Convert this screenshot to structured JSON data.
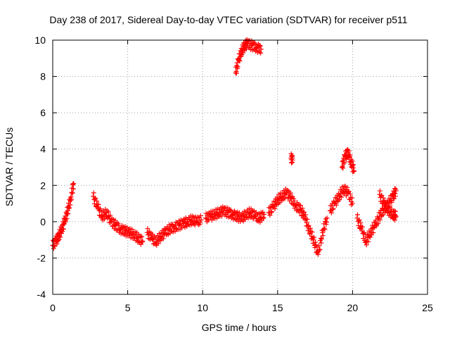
{
  "chart_data": {
    "type": "scatter",
    "title": "Day 238 of 2017, Sidereal Day-to-day VTEC variation (SDTVAR) for receiver p511",
    "xlabel": "GPS time / hours",
    "ylabel": "SDTVAR / TECUs",
    "xlim": [
      0,
      25
    ],
    "ylim": [
      -4,
      10
    ],
    "grid": true,
    "marker": "+",
    "series_color": "#ff0000",
    "xticks": [
      0,
      5,
      10,
      15,
      20,
      25
    ],
    "yticks": [
      -4,
      -2,
      0,
      2,
      4,
      6,
      8,
      10
    ],
    "series": [
      {
        "name": "p511",
        "segments": [
          {
            "x": [
              0.0,
              0.2,
              0.4,
              0.6,
              0.8,
              1.0,
              1.2,
              1.4
            ],
            "y": [
              -1.3,
              -1.1,
              -0.8,
              -0.4,
              0.0,
              0.6,
              1.3,
              2.1
            ]
          },
          {
            "x": [
              2.7,
              3.0,
              3.3,
              3.6,
              3.9,
              4.2,
              4.5,
              4.8,
              5.1,
              5.4,
              5.7,
              6.0
            ],
            "y": [
              1.4,
              0.8,
              0.3,
              0.5,
              0.0,
              -0.2,
              -0.4,
              -0.5,
              -0.6,
              -0.7,
              -0.9,
              -1.1
            ]
          },
          {
            "x": [
              6.3,
              6.6,
              6.9,
              7.2,
              7.5,
              7.8,
              8.1,
              8.4,
              8.7,
              9.0,
              9.3,
              9.6,
              9.9
            ],
            "y": [
              -0.6,
              -0.9,
              -1.1,
              -0.8,
              -0.6,
              -0.4,
              -0.3,
              -0.2,
              -0.1,
              0.0,
              0.1,
              0.0,
              0.1
            ]
          },
          {
            "x": [
              10.2,
              10.5,
              10.8,
              11.1,
              11.4,
              11.7,
              12.0,
              12.3,
              12.6,
              12.9,
              13.2,
              13.5,
              13.8,
              14.1
            ],
            "y": [
              0.2,
              0.3,
              0.4,
              0.5,
              0.6,
              0.5,
              0.4,
              0.3,
              0.2,
              0.4,
              0.5,
              0.3,
              0.2,
              0.4
            ]
          },
          {
            "x": [
              12.2,
              12.4,
              12.6,
              12.8,
              13.0,
              13.3,
              13.6,
              13.9
            ],
            "y": [
              8.2,
              8.9,
              9.4,
              9.7,
              9.8,
              9.7,
              9.6,
              9.5
            ]
          },
          {
            "x": [
              14.4,
              14.7,
              15.0,
              15.3,
              15.6,
              15.9,
              16.2,
              16.5,
              16.8,
              17.1,
              17.4,
              17.7,
              18.0,
              18.3
            ],
            "y": [
              0.5,
              0.8,
              1.2,
              1.4,
              1.6,
              1.3,
              0.9,
              0.7,
              0.3,
              -0.4,
              -1.0,
              -1.8,
              -0.6,
              0.2
            ]
          },
          {
            "x": [
              15.9,
              16.0
            ],
            "y": [
              3.5,
              3.4
            ]
          },
          {
            "x": [
              18.5,
              18.8,
              19.1,
              19.4,
              19.7,
              20.0
            ],
            "y": [
              0.6,
              1.0,
              1.4,
              1.8,
              1.6,
              1.0
            ]
          },
          {
            "x": [
              19.3,
              19.5,
              19.7,
              19.9,
              20.1
            ],
            "y": [
              3.0,
              3.6,
              3.8,
              3.3,
              2.8
            ]
          },
          {
            "x": [
              20.3,
              20.6,
              20.9,
              21.2,
              21.5,
              21.8,
              22.1,
              22.4,
              22.7,
              22.9
            ],
            "y": [
              0.2,
              -0.4,
              -1.1,
              -0.6,
              -0.2,
              0.3,
              0.7,
              1.0,
              1.4,
              1.7
            ]
          },
          {
            "x": [
              21.8,
              22.1,
              22.4,
              22.7,
              22.9
            ],
            "y": [
              1.5,
              1.0,
              0.6,
              0.4,
              0.3
            ]
          }
        ]
      }
    ]
  }
}
